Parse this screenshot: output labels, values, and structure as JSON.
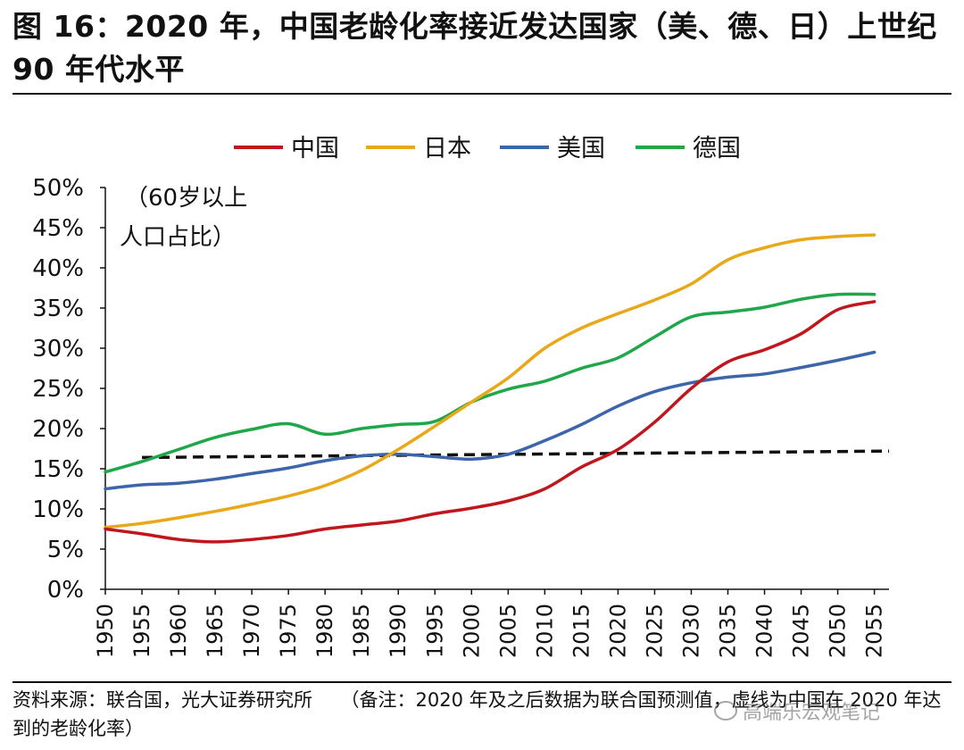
{
  "title": "图 16：2020 年，中国老龄化率接近发达国家（美、德、日）上世纪 90 年代水平",
  "footnote": "资料来源：联合国，光大证券研究所　　（备注：2020 年及之后数据为联合国预测值，虚线为中国在 2020 年达到的老龄化率）",
  "watermark": "高端乐宏观笔记",
  "colors": {
    "china": "#c0161d",
    "japan": "#e8a817",
    "usa": "#3d65aa",
    "germany": "#1fa74a",
    "reference": "#111111"
  },
  "chart_data": {
    "type": "line",
    "ylabel": "（60岁以上人口占比）",
    "ylabel_lines": [
      "（60岁以上",
      "人口占比）"
    ],
    "ylim": [
      0,
      50
    ],
    "yticks": [
      0,
      5,
      10,
      15,
      20,
      25,
      30,
      35,
      40,
      45,
      50
    ],
    "ytick_labels": [
      "0%",
      "5%",
      "10%",
      "15%",
      "20%",
      "25%",
      "30%",
      "35%",
      "40%",
      "45%",
      "50%"
    ],
    "xlim": [
      1950,
      2057
    ],
    "xticks": [
      1950,
      1955,
      1960,
      1965,
      1970,
      1975,
      1980,
      1985,
      1990,
      1995,
      2000,
      2005,
      2010,
      2015,
      2020,
      2025,
      2030,
      2035,
      2040,
      2045,
      2050,
      2055
    ],
    "legend_position": "top",
    "x": [
      1950,
      1955,
      1960,
      1965,
      1970,
      1975,
      1980,
      1985,
      1990,
      1995,
      2000,
      2005,
      2010,
      2015,
      2020,
      2025,
      2030,
      2035,
      2040,
      2045,
      2050,
      2055
    ],
    "series": [
      {
        "name": "中国",
        "key": "china",
        "values": [
          7.5,
          6.9,
          6.2,
          5.9,
          6.2,
          6.7,
          7.5,
          8.0,
          8.5,
          9.4,
          10.1,
          11.0,
          12.5,
          15.2,
          17.4,
          20.8,
          25.0,
          28.3,
          29.8,
          31.8,
          34.8,
          35.8
        ]
      },
      {
        "name": "日本",
        "key": "japan",
        "values": [
          7.7,
          8.2,
          8.9,
          9.7,
          10.6,
          11.6,
          12.9,
          14.8,
          17.4,
          20.3,
          23.3,
          26.3,
          30.0,
          32.5,
          34.3,
          36.0,
          38.0,
          41.0,
          42.5,
          43.5,
          43.9,
          44.1
        ]
      },
      {
        "name": "美国",
        "key": "usa",
        "values": [
          12.5,
          13.0,
          13.2,
          13.7,
          14.4,
          15.1,
          16.0,
          16.6,
          16.8,
          16.5,
          16.2,
          16.8,
          18.5,
          20.5,
          22.8,
          24.6,
          25.7,
          26.4,
          26.8,
          27.6,
          28.5,
          29.5
        ]
      },
      {
        "name": "德国",
        "key": "germany",
        "values": [
          14.6,
          15.9,
          17.4,
          18.9,
          19.9,
          20.6,
          19.3,
          20.0,
          20.5,
          20.9,
          23.3,
          24.9,
          25.9,
          27.5,
          28.8,
          31.4,
          33.9,
          34.5,
          35.1,
          36.1,
          36.7,
          36.7
        ]
      }
    ],
    "reference_line": {
      "name": "中国2020年老龄化率",
      "from_x": 1955,
      "to_x": 2057,
      "y_start": 16.4,
      "y_end": 17.2
    }
  }
}
